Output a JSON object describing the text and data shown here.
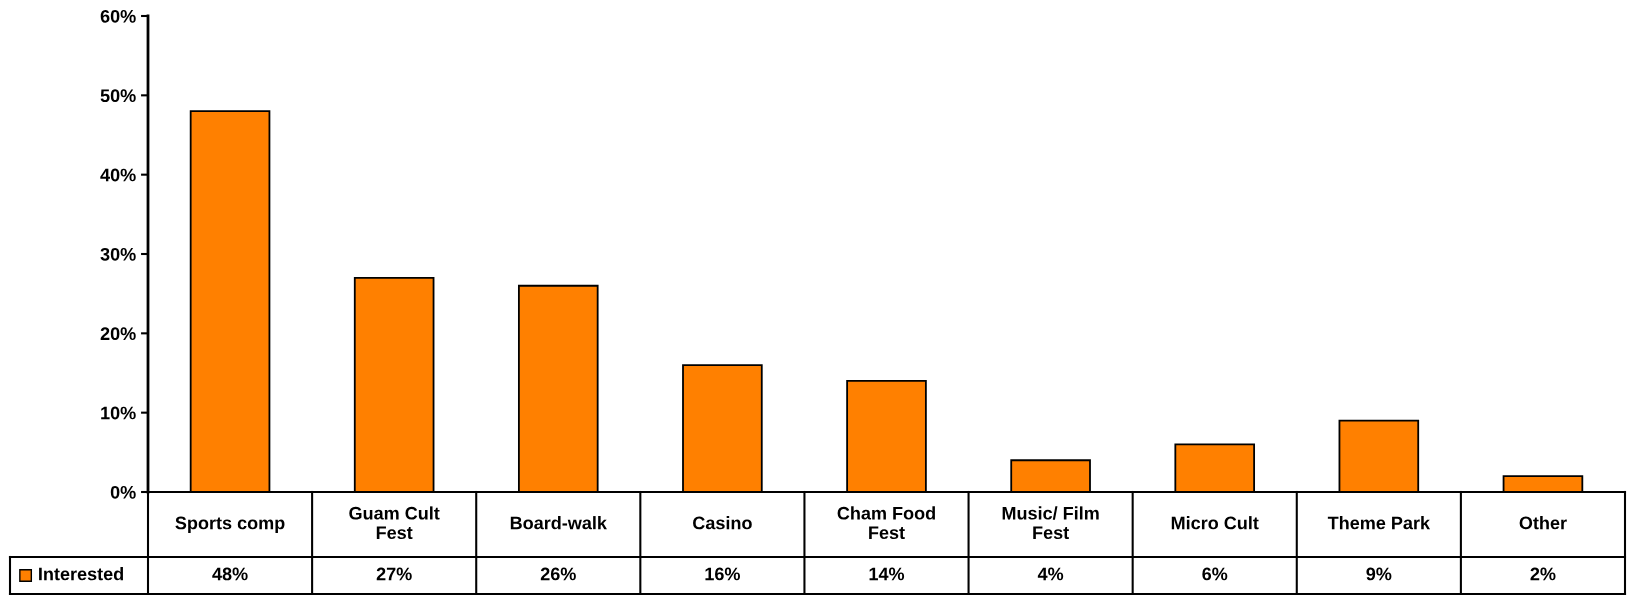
{
  "chart_data": {
    "type": "bar",
    "categories": [
      "Sports comp",
      "Guam Cult\nFest",
      "Board-walk",
      "Casino",
      "Cham Food\nFest",
      "Music/ Film\nFest",
      "Micro Cult",
      "Theme Park",
      "Other"
    ],
    "series": [
      {
        "name": "Interested",
        "color": "#ff8000",
        "values": [
          48,
          27,
          26,
          16,
          14,
          4,
          6,
          9,
          2
        ]
      }
    ],
    "ylim": [
      0,
      60
    ],
    "yticks": [
      {
        "value": 0,
        "label": "0%"
      },
      {
        "value": 10,
        "label": "10%"
      },
      {
        "value": 20,
        "label": "20%"
      },
      {
        "value": 30,
        "label": "30%"
      },
      {
        "value": 40,
        "label": "40%"
      },
      {
        "value": 50,
        "label": "50%"
      },
      {
        "value": 60,
        "label": "60%"
      }
    ],
    "value_labels": [
      "48%",
      "27%",
      "26%",
      "16%",
      "14%",
      "4%",
      "6%",
      "9%",
      "2%"
    ],
    "legend": "bottom left",
    "grid": false
  }
}
